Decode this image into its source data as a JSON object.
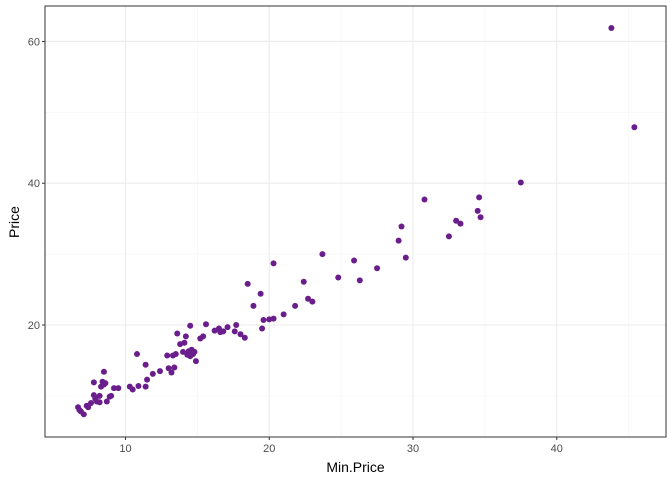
{
  "chart_data": {
    "type": "scatter",
    "xlabel": "Min.Price",
    "ylabel": "Price",
    "xlim": [
      4.4,
      47.6
    ],
    "ylim": [
      4.2,
      65.0
    ],
    "x_ticks": [
      10,
      20,
      30,
      40
    ],
    "y_ticks": [
      20,
      40,
      60
    ],
    "x_minor_ticks": [
      15,
      25,
      35,
      45
    ],
    "y_minor_ticks": [
      10,
      30,
      50
    ],
    "grid": true,
    "point_color": "#6a1e8c",
    "grid_color": "#ebebeb",
    "points": [
      [
        6.7,
        8.4
      ],
      [
        6.8,
        8.0
      ],
      [
        6.9,
        7.8
      ],
      [
        7.1,
        7.4
      ],
      [
        7.3,
        8.6
      ],
      [
        7.4,
        8.4
      ],
      [
        7.6,
        9.0
      ],
      [
        7.8,
        10.1
      ],
      [
        7.8,
        11.9
      ],
      [
        7.9,
        9.6
      ],
      [
        8.0,
        9.2
      ],
      [
        8.2,
        9.1
      ],
      [
        8.2,
        10.0
      ],
      [
        8.3,
        11.3
      ],
      [
        8.4,
        12.0
      ],
      [
        8.5,
        11.6
      ],
      [
        8.5,
        13.4
      ],
      [
        8.6,
        11.8
      ],
      [
        8.7,
        9.2
      ],
      [
        8.9,
        9.9
      ],
      [
        9.0,
        10.0
      ],
      [
        9.2,
        11.1
      ],
      [
        9.5,
        11.1
      ],
      [
        10.3,
        11.3
      ],
      [
        10.5,
        10.9
      ],
      [
        10.8,
        15.9
      ],
      [
        10.9,
        11.4
      ],
      [
        11.4,
        11.3
      ],
      [
        11.4,
        14.4
      ],
      [
        11.5,
        12.3
      ],
      [
        11.9,
        13.1
      ],
      [
        12.4,
        13.5
      ],
      [
        12.9,
        15.7
      ],
      [
        13.0,
        13.9
      ],
      [
        13.2,
        13.3
      ],
      [
        13.3,
        15.7
      ],
      [
        13.4,
        14.0
      ],
      [
        13.5,
        15.9
      ],
      [
        13.6,
        18.8
      ],
      [
        13.8,
        17.3
      ],
      [
        14.0,
        16.2
      ],
      [
        14.1,
        17.5
      ],
      [
        14.2,
        18.4
      ],
      [
        14.3,
        15.8
      ],
      [
        14.4,
        16.3
      ],
      [
        14.5,
        15.6
      ],
      [
        14.5,
        19.9
      ],
      [
        14.6,
        16.5
      ],
      [
        14.7,
        15.9
      ],
      [
        14.8,
        16.2
      ],
      [
        14.9,
        14.9
      ],
      [
        15.2,
        18.1
      ],
      [
        15.4,
        18.4
      ],
      [
        15.6,
        20.1
      ],
      [
        16.2,
        19.2
      ],
      [
        16.5,
        19.5
      ],
      [
        16.6,
        19.0
      ],
      [
        16.8,
        19.1
      ],
      [
        17.1,
        19.7
      ],
      [
        17.6,
        19.1
      ],
      [
        17.7,
        20.0
      ],
      [
        18.0,
        18.7
      ],
      [
        18.3,
        18.2
      ],
      [
        18.5,
        25.8
      ],
      [
        18.9,
        22.7
      ],
      [
        19.4,
        24.4
      ],
      [
        19.5,
        19.5
      ],
      [
        19.6,
        20.7
      ],
      [
        20.0,
        20.8
      ],
      [
        20.3,
        20.9
      ],
      [
        20.3,
        28.7
      ],
      [
        21.0,
        21.5
      ],
      [
        21.8,
        22.7
      ],
      [
        22.4,
        26.1
      ],
      [
        22.7,
        23.7
      ],
      [
        23.0,
        23.3
      ],
      [
        23.7,
        30.0
      ],
      [
        24.8,
        26.7
      ],
      [
        25.9,
        29.1
      ],
      [
        26.3,
        26.3
      ],
      [
        27.5,
        28.0
      ],
      [
        29.0,
        31.9
      ],
      [
        29.2,
        33.9
      ],
      [
        29.5,
        29.5
      ],
      [
        30.8,
        37.7
      ],
      [
        32.5,
        32.5
      ],
      [
        33.0,
        34.7
      ],
      [
        33.3,
        34.3
      ],
      [
        34.5,
        36.1
      ],
      [
        34.6,
        38.0
      ],
      [
        34.7,
        35.2
      ],
      [
        37.5,
        40.1
      ],
      [
        43.8,
        61.9
      ],
      [
        45.4,
        47.9
      ]
    ]
  }
}
